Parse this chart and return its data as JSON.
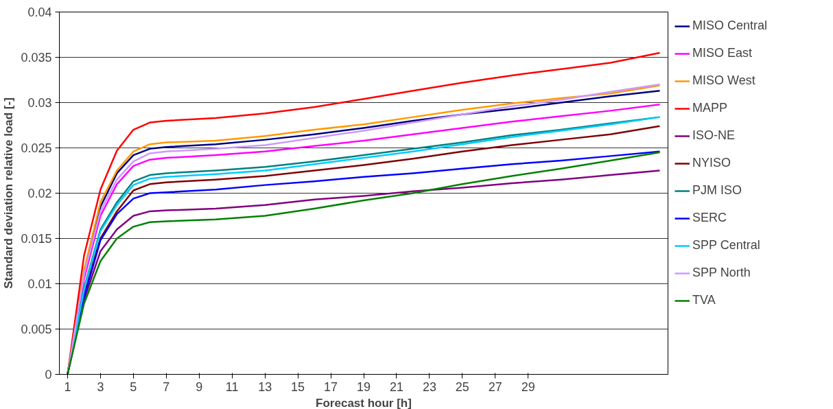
{
  "chart_data": {
    "type": "line",
    "xlabel": "Forecast hour [h]",
    "ylabel": "Standard deviation relative load [-]",
    "x": [
      1,
      2,
      3,
      4,
      5,
      6,
      7,
      10,
      13,
      16,
      19,
      22,
      25,
      28,
      31,
      34,
      37
    ],
    "xlim": [
      0.5,
      37.5
    ],
    "xticks": [
      1,
      3,
      5,
      7,
      9,
      11,
      13,
      15,
      17,
      19,
      21,
      23,
      25,
      27,
      29
    ],
    "ylim": [
      0,
      0.04
    ],
    "yticks": [
      0,
      0.005,
      0.01,
      0.015,
      0.02,
      0.025,
      0.03,
      0.035,
      0.04
    ],
    "grid": "y",
    "legend": "right",
    "marker": "none",
    "line_style": "solid",
    "series": [
      {
        "name": "MISO Central",
        "color": "#000080",
        "values": [
          0,
          0.011,
          0.0185,
          0.0222,
          0.0242,
          0.0249,
          0.0251,
          0.0254,
          0.0259,
          0.0265,
          0.0272,
          0.028,
          0.0287,
          0.0293,
          0.03,
          0.0307,
          0.0313
        ]
      },
      {
        "name": "MISO East",
        "color": "#ff00ff",
        "values": [
          0,
          0.0105,
          0.0175,
          0.021,
          0.023,
          0.0237,
          0.0239,
          0.0242,
          0.0246,
          0.0252,
          0.0258,
          0.0265,
          0.0272,
          0.0279,
          0.0285,
          0.0291,
          0.0298
        ]
      },
      {
        "name": "MISO West",
        "color": "#ff9900",
        "values": [
          0,
          0.0115,
          0.019,
          0.0225,
          0.0246,
          0.0254,
          0.0256,
          0.0258,
          0.0263,
          0.027,
          0.0276,
          0.0284,
          0.0292,
          0.0299,
          0.0305,
          0.031,
          0.0319
        ]
      },
      {
        "name": "MAPP",
        "color": "#ff0000",
        "values": [
          0,
          0.0131,
          0.0204,
          0.0247,
          0.027,
          0.0278,
          0.028,
          0.0283,
          0.0288,
          0.0295,
          0.0304,
          0.0313,
          0.0322,
          0.033,
          0.0337,
          0.0344,
          0.0355
        ]
      },
      {
        "name": "ISO-NE",
        "color": "#800080",
        "values": [
          0,
          0.0082,
          0.0136,
          0.016,
          0.0175,
          0.018,
          0.0181,
          0.0183,
          0.0187,
          0.0193,
          0.0197,
          0.0202,
          0.0206,
          0.0211,
          0.0215,
          0.022,
          0.0225
        ]
      },
      {
        "name": "NYISO",
        "color": "#800000",
        "values": [
          0,
          0.009,
          0.015,
          0.018,
          0.0203,
          0.021,
          0.0212,
          0.0215,
          0.0219,
          0.0225,
          0.0231,
          0.0238,
          0.0246,
          0.0253,
          0.0259,
          0.0265,
          0.0274
        ]
      },
      {
        "name": "PJM ISO",
        "color": "#008080",
        "values": [
          0,
          0.0095,
          0.016,
          0.019,
          0.0213,
          0.022,
          0.0222,
          0.0225,
          0.0229,
          0.0235,
          0.0242,
          0.0249,
          0.0256,
          0.0264,
          0.027,
          0.0277,
          0.0284
        ]
      },
      {
        "name": "SERC",
        "color": "#0000ff",
        "values": [
          0,
          0.0085,
          0.0148,
          0.0177,
          0.0194,
          0.02,
          0.0201,
          0.0204,
          0.0209,
          0.0213,
          0.0218,
          0.0222,
          0.0227,
          0.0232,
          0.0236,
          0.0241,
          0.0246
        ]
      },
      {
        "name": "SPP Central",
        "color": "#00ccff",
        "values": [
          0,
          0.0093,
          0.0158,
          0.0187,
          0.0209,
          0.0216,
          0.0218,
          0.0221,
          0.0225,
          0.0232,
          0.0239,
          0.0246,
          0.0254,
          0.0262,
          0.0269,
          0.0276,
          0.0284
        ]
      },
      {
        "name": "SPP North",
        "color": "#cc99ff",
        "values": [
          0,
          0.011,
          0.018,
          0.0215,
          0.0235,
          0.0244,
          0.0246,
          0.0249,
          0.0253,
          0.0261,
          0.0269,
          0.0278,
          0.0287,
          0.0296,
          0.0303,
          0.0312,
          0.032
        ]
      },
      {
        "name": "TVA",
        "color": "#008000",
        "values": [
          0,
          0.0078,
          0.0125,
          0.015,
          0.0163,
          0.0168,
          0.0169,
          0.0171,
          0.0175,
          0.0183,
          0.0192,
          0.02,
          0.021,
          0.0219,
          0.0227,
          0.0236,
          0.0245
        ]
      }
    ]
  }
}
